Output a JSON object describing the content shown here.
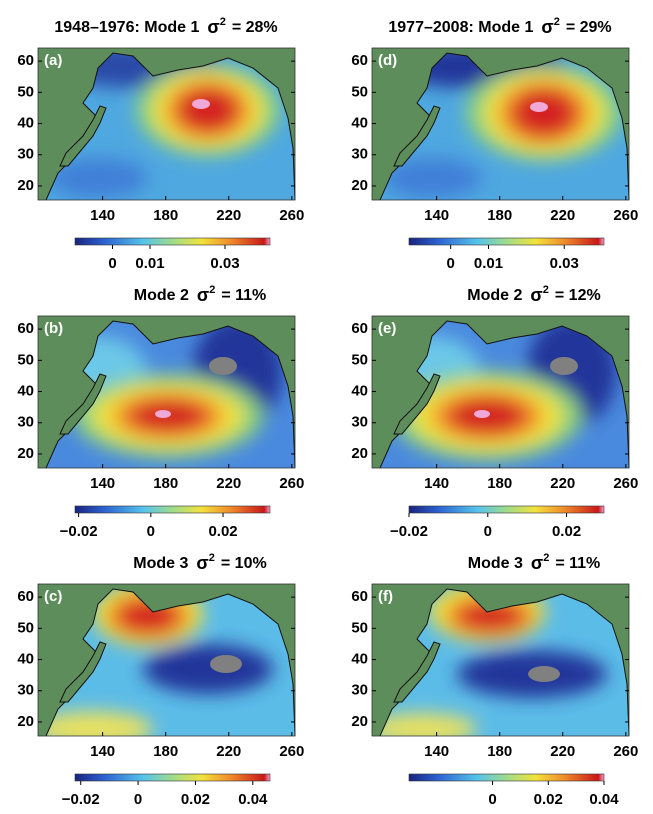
{
  "chart_data": [
    {
      "type": "map",
      "heading": "1948–1976:  Mode 1",
      "symbol": "σ",
      "exponent": "2",
      "variance": "=  28%",
      "panel_label": "(a)",
      "xlim": [
        99,
        262
      ],
      "ylim": [
        15.5,
        64.2
      ],
      "xticks": [
        140,
        180,
        220,
        260
      ],
      "yticks": [
        20,
        30,
        40,
        50,
        60
      ],
      "colorbar": {
        "lim": [
          -0.01,
          0.042
        ],
        "ticks": [
          0,
          0.01,
          0.03
        ]
      }
    },
    {
      "type": "map",
      "heading": "Mode  2",
      "symbol": "σ",
      "exponent": "2",
      "variance": "=  11%",
      "panel_label": "(b)",
      "xlim": [
        99,
        262
      ],
      "ylim": [
        15.5,
        64.2
      ],
      "xticks": [
        140,
        180,
        220,
        260
      ],
      "yticks": [
        20,
        30,
        40,
        50,
        60
      ],
      "colorbar": {
        "lim": [
          -0.021,
          0.033
        ],
        "ticks": [
          {
            "value": -0.02,
            "label": "−0.02"
          },
          0,
          0.02
        ]
      }
    },
    {
      "type": "map",
      "heading": "Mode  3",
      "symbol": "σ",
      "exponent": "2",
      "variance": "=  10%",
      "panel_label": "(c)",
      "xlim": [
        99,
        262
      ],
      "ylim": [
        15.5,
        64.2
      ],
      "xticks": [
        140,
        180,
        220,
        260
      ],
      "yticks": [
        20,
        30,
        40,
        50,
        60
      ],
      "colorbar": {
        "lim": [
          -0.022,
          0.046
        ],
        "ticks": [
          {
            "value": -0.02,
            "label": "−0.02"
          },
          0,
          0.02,
          0.04
        ]
      }
    },
    {
      "type": "map",
      "heading": "1977–2008:  Mode 1",
      "symbol": "σ",
      "exponent": "2",
      "variance": "=  29%",
      "panel_label": "(d)",
      "xlim": [
        99,
        262
      ],
      "ylim": [
        15.5,
        64.2
      ],
      "xticks": [
        140,
        180,
        220,
        260
      ],
      "yticks": [
        20,
        30,
        40,
        50,
        60
      ],
      "colorbar": {
        "lim": [
          -0.011,
          0.0405
        ],
        "ticks": [
          0,
          0.01,
          0.03
        ]
      }
    },
    {
      "type": "map",
      "heading": "Mode  2",
      "symbol": "σ",
      "exponent": "2",
      "variance": "=  12%",
      "panel_label": "(e)",
      "xlim": [
        99,
        262
      ],
      "ylim": [
        15.5,
        64.2
      ],
      "xticks": [
        140,
        180,
        220,
        260
      ],
      "yticks": [
        20,
        30,
        40,
        50,
        60
      ],
      "colorbar": {
        "lim": [
          -0.02,
          0.0295
        ],
        "ticks": [
          {
            "value": -0.02,
            "label": "−0.02"
          },
          0,
          0.02
        ]
      }
    },
    {
      "type": "map",
      "heading": "Mode  3",
      "symbol": "σ",
      "exponent": "2",
      "variance": "=  11%",
      "panel_label": "(f)",
      "xlim": [
        99,
        262
      ],
      "ylim": [
        15.5,
        64.2
      ],
      "xticks": [
        140,
        180,
        220,
        260
      ],
      "yticks": [
        20,
        30,
        40,
        50,
        60
      ],
      "colorbar": {
        "lim": [
          -0.03,
          0.04
        ],
        "ticks": [
          0,
          0.02,
          0.04
        ]
      }
    }
  ]
}
